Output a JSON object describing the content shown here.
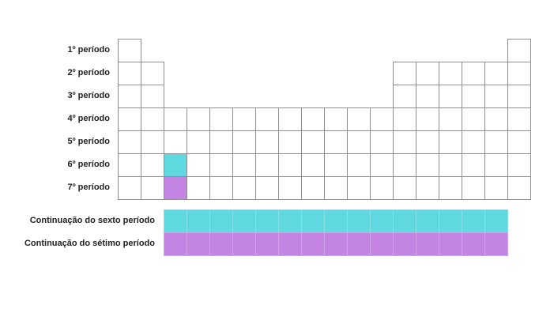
{
  "periods": [
    {
      "label": "1º período",
      "groups": [
        1,
        18
      ]
    },
    {
      "label": "2º período",
      "groups": [
        1,
        2,
        13,
        14,
        15,
        16,
        17,
        18
      ]
    },
    {
      "label": "3º período",
      "groups": [
        1,
        2,
        13,
        14,
        15,
        16,
        17,
        18
      ]
    },
    {
      "label": "4º período",
      "groups": [
        1,
        2,
        3,
        4,
        5,
        6,
        7,
        8,
        9,
        10,
        11,
        12,
        13,
        14,
        15,
        16,
        17,
        18
      ]
    },
    {
      "label": "5º período",
      "groups": [
        1,
        2,
        3,
        4,
        5,
        6,
        7,
        8,
        9,
        10,
        11,
        12,
        13,
        14,
        15,
        16,
        17,
        18
      ]
    },
    {
      "label": "6º período",
      "groups": [
        1,
        2,
        3,
        4,
        5,
        6,
        7,
        8,
        9,
        10,
        11,
        12,
        13,
        14,
        15,
        16,
        17,
        18
      ],
      "highlight": {
        "group": 3,
        "series": "lanthanides"
      }
    },
    {
      "label": "7º período",
      "groups": [
        1,
        2,
        3,
        4,
        5,
        6,
        7,
        8,
        9,
        10,
        11,
        12,
        13,
        14,
        15,
        16,
        17,
        18
      ],
      "highlight": {
        "group": 3,
        "series": "actinides"
      }
    }
  ],
  "continuations": [
    {
      "key": "lanthanides",
      "label": "Continuação do sexto período",
      "count": 15
    },
    {
      "key": "actinides",
      "label": "Continuação do sétimo período",
      "count": 15
    }
  ],
  "colors": {
    "lanthanides": "#5fd8df",
    "actinides": "#c384e4",
    "cell_border": "#8f8f8f",
    "text": "#222222"
  }
}
